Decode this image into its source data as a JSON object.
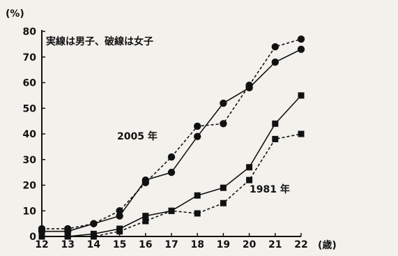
{
  "chart_data": {
    "type": "line",
    "title": "",
    "xlabel": "",
    "ylabel": "",
    "y_unit_label": "(%)",
    "x_unit_label": "(歳)",
    "legend_note": "実線は男子、破線は女子",
    "ylim": [
      0,
      80
    ],
    "xlim": [
      12,
      22
    ],
    "yticks": [
      0,
      10,
      20,
      30,
      40,
      50,
      60,
      70,
      80
    ],
    "xticks": [
      12,
      13,
      14,
      15,
      16,
      17,
      18,
      19,
      20,
      21,
      22
    ],
    "grid": false,
    "x": [
      12,
      13,
      14,
      15,
      16,
      17,
      18,
      19,
      20,
      21,
      22
    ],
    "annotations": [
      {
        "text": "2005 年",
        "group": "2005"
      },
      {
        "text": "1981 年",
        "group": "1981"
      }
    ],
    "series": [
      {
        "group": "2005",
        "sex": "male",
        "line": "solid",
        "marker": "circle",
        "values": [
          2,
          2,
          5,
          8,
          22,
          25,
          39,
          52,
          58,
          68,
          73
        ]
      },
      {
        "group": "2005",
        "sex": "female",
        "line": "dashed",
        "marker": "circle",
        "values": [
          3,
          3,
          5,
          10,
          21,
          31,
          43,
          44,
          59,
          74,
          77
        ]
      },
      {
        "group": "1981",
        "sex": "male",
        "line": "solid",
        "marker": "square",
        "values": [
          0,
          0,
          1,
          3,
          8,
          10,
          16,
          19,
          27,
          44,
          55
        ]
      },
      {
        "group": "1981",
        "sex": "female",
        "line": "dashed",
        "marker": "square",
        "values": [
          0,
          0,
          0,
          2,
          6,
          10,
          9,
          13,
          22,
          38,
          40
        ]
      }
    ]
  }
}
